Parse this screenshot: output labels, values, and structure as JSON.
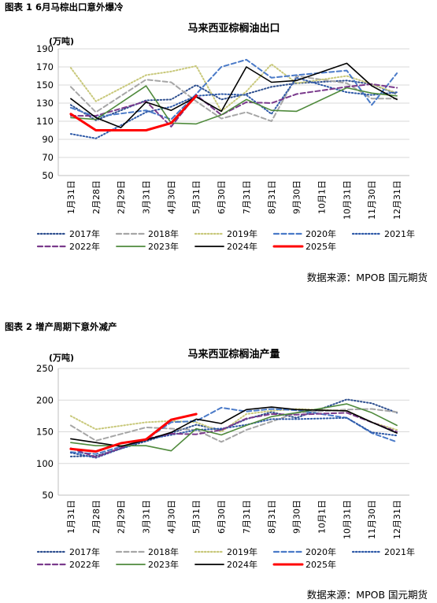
{
  "figures": [
    {
      "heading": "图表 1 6月马棕出口意外爆冷",
      "source": "数据来源：MPOB 国元期货"
    },
    {
      "heading": "图表 2 增产周期下意外减产",
      "source": "数据来源：MPOB 国元期货"
    }
  ],
  "colors": {
    "2017": "#2e4f8f",
    "2018": "#a6a6a6",
    "2019": "#c8c87a",
    "2020": "#4a7ac8",
    "2021": "#2f5aa8",
    "2022": "#7a3a8c",
    "2023": "#4f8a3c",
    "2024": "#000000",
    "2025": "#ff0000"
  },
  "chart_data": [
    {
      "type": "line",
      "title": "马来西亚棕榈油出口",
      "ylabel": "(万吨)",
      "ylim": [
        50,
        190
      ],
      "yticks": [
        50,
        70,
        90,
        110,
        130,
        150,
        170,
        190
      ],
      "categories": [
        "1月31日",
        "2月28日",
        "2月29日",
        "3月31日",
        "4月30日",
        "5月31日",
        "6月30日",
        "7月31日",
        "8月31日",
        "9月30日",
        "10月1日",
        "10月31日",
        "11月30日",
        "12月31日"
      ],
      "legend": "bottom",
      "series": [
        {
          "name": "2017年",
          "dash": "dot",
          "values": [
            128,
            111,
            null,
            133,
            134,
            150,
            134,
            140,
            148,
            152,
            null,
            155,
            151,
            140
          ]
        },
        {
          "name": "2018年",
          "dash": "dash",
          "values": [
            148,
            120,
            null,
            156,
            153,
            132,
            113,
            120,
            110,
            160,
            null,
            152,
            135,
            135
          ]
        },
        {
          "name": "2019年",
          "dash": "dot",
          "values": [
            169,
            132,
            null,
            161,
            165,
            171,
            121,
            143,
            173,
            152,
            null,
            160,
            151,
            141
          ]
        },
        {
          "name": "2020年",
          "dash": "dash",
          "values": [
            125,
            115,
            null,
            122,
            112,
            140,
            170,
            178,
            158,
            161,
            null,
            166,
            128,
            163
          ]
        },
        {
          "name": "2021年",
          "dash": "dot",
          "values": [
            96,
            91,
            null,
            120,
            126,
            138,
            140,
            139,
            118,
            158,
            null,
            142,
            139,
            142
          ]
        },
        {
          "name": "2022年",
          "dash": "dash",
          "values": [
            116,
            116,
            null,
            132,
            104,
            139,
            117,
            131,
            130,
            140,
            null,
            148,
            151,
            147
          ]
        },
        {
          "name": "2023年",
          "dash": "solid",
          "values": [
            114,
            112,
            null,
            149,
            108,
            107,
            117,
            134,
            122,
            121,
            null,
            147,
            141,
            138
          ]
        },
        {
          "name": "2024年",
          "dash": "solid",
          "values": [
            135,
            114,
            103,
            131,
            122,
            137,
            121,
            170,
            153,
            155,
            null,
            174,
            149,
            134
          ]
        },
        {
          "name": "2025年",
          "dash": "solid",
          "values": [
            118,
            100,
            100,
            100,
            108,
            138,
            null,
            null,
            null,
            null,
            null,
            null,
            null,
            null
          ]
        }
      ]
    },
    {
      "type": "line",
      "title": "马来西亚棕榈油产量",
      "ylabel": "(万吨)",
      "ylim": [
        50,
        250
      ],
      "yticks": [
        50,
        100,
        150,
        200,
        250
      ],
      "categories": [
        "1月31日",
        "2月28日",
        "2月29日",
        "3月31日",
        "4月30日",
        "5月31日",
        "6月30日",
        "7月31日",
        "8月31日",
        "9月30日",
        "10月1日",
        "10月31日",
        "11月30日",
        "12月31日"
      ],
      "legend": "bottom",
      "series": [
        {
          "name": "2017年",
          "dash": "dot",
          "values": [
            111,
            112,
            null,
            135,
            148,
            161,
            153,
            170,
            181,
            172,
            null,
            201,
            195,
            180
          ]
        },
        {
          "name": "2018年",
          "dash": "dash",
          "values": [
            160,
            136,
            null,
            157,
            155,
            153,
            134,
            153,
            166,
            180,
            null,
            185,
            186,
            181
          ]
        },
        {
          "name": "2019年",
          "dash": "dot",
          "values": [
            175,
            154,
            null,
            165,
            167,
            165,
            150,
            178,
            183,
            186,
            null,
            183,
            165,
            153
          ]
        },
        {
          "name": "2020年",
          "dash": "dash",
          "values": [
            118,
            115,
            null,
            138,
            165,
            167,
            188,
            182,
            186,
            184,
            null,
            172,
            148,
            134
          ]
        },
        {
          "name": "2021年",
          "dash": "dot",
          "values": [
            117,
            109,
            null,
            138,
            145,
            153,
            155,
            161,
            170,
            170,
            null,
            172,
            149,
            144
          ]
        },
        {
          "name": "2022年",
          "dash": "dash",
          "values": [
            124,
            110,
            null,
            139,
            147,
            146,
            153,
            171,
            178,
            177,
            null,
            180,
            165,
            150
          ]
        },
        {
          "name": "2023年",
          "dash": "solid",
          "values": [
            133,
            128,
            null,
            128,
            120,
            155,
            145,
            160,
            174,
            180,
            null,
            194,
            180,
            160
          ]
        },
        {
          "name": "2024年",
          "dash": "solid",
          "values": [
            139,
            133,
            127,
            137,
            149,
            170,
            163,
            185,
            189,
            185,
            null,
            183,
            165,
            148
          ]
        },
        {
          "name": "2025年",
          "dash": "solid",
          "values": [
            123,
            119,
            132,
            138,
            169,
            178,
            null,
            null,
            null,
            null,
            null,
            null,
            null,
            null
          ]
        }
      ]
    }
  ]
}
